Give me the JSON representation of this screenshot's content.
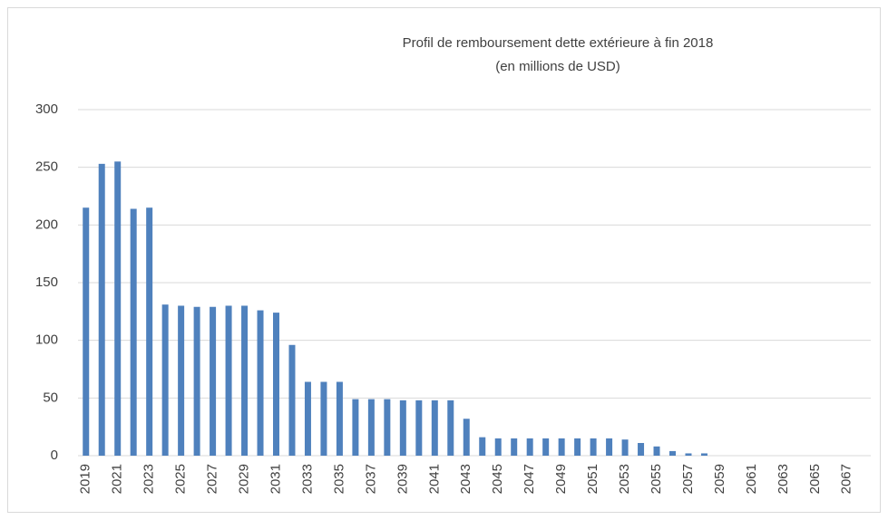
{
  "chart_data": {
    "type": "bar",
    "title": "Profil de remboursement dette extérieure à fin 2018",
    "subtitle": "(en millions de USD)",
    "categories": [
      "2019",
      null,
      "2021",
      null,
      "2023",
      null,
      "2025",
      null,
      "2027",
      null,
      "2029",
      null,
      "2031",
      null,
      "2033",
      null,
      "2035",
      null,
      "2037",
      null,
      "2039",
      null,
      "2041",
      null,
      "2043",
      null,
      "2045",
      null,
      "2047",
      null,
      "2049",
      null,
      "2051",
      null,
      "2053",
      null,
      "2055",
      null,
      "2057",
      null,
      "2059",
      null,
      "2061",
      null,
      "2063",
      null,
      "2065",
      null,
      "2067",
      null
    ],
    "values": [
      215,
      253,
      255,
      214,
      215,
      131,
      130,
      129,
      129,
      130,
      130,
      126,
      124,
      96,
      64,
      64,
      64,
      49,
      49,
      49,
      48,
      48,
      48,
      48,
      32,
      16,
      15,
      15,
      15,
      15,
      15,
      15,
      15,
      15,
      14,
      11,
      8,
      4,
      2,
      2,
      0,
      0,
      0,
      0,
      0,
      0,
      0,
      0,
      0,
      0
    ],
    "color": "#4f81bd",
    "ylim": [
      0,
      300
    ],
    "yticks": [
      0,
      50,
      100,
      150,
      200,
      250,
      300
    ],
    "grid": true
  }
}
